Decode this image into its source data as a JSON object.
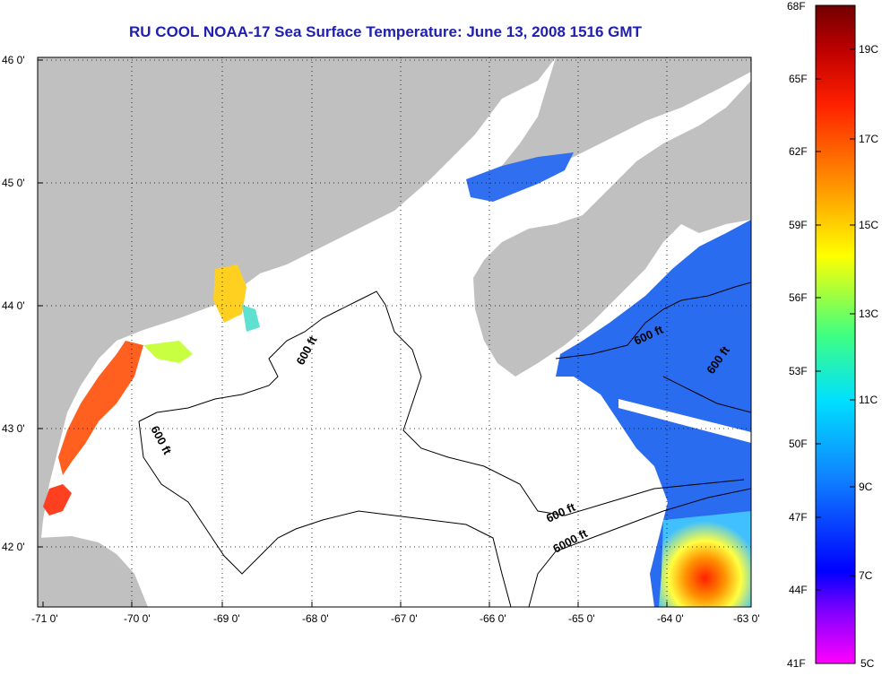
{
  "title": "RU COOL  NOAA-17  Sea Surface Temperature:  June 13, 2008 1516 GMT",
  "map": {
    "longitude_labels": [
      "-71 0'",
      "-70 0'",
      "-69 0'",
      "-68 0'",
      "-67 0'",
      "-66 0'",
      "-65 0'",
      "-64 0'",
      "-63 0'"
    ],
    "latitude_labels": [
      "46 0'",
      "45 0'",
      "44 0'",
      "43 0'",
      "42 0'"
    ],
    "contour_labels": [
      "600 ft",
      "600 ft",
      "600 ft",
      "600 ft",
      "600 ft",
      "6000 ft"
    ],
    "land_color": "#c0c0c0",
    "grid": "dotted"
  },
  "colorbar": {
    "fahrenheit_labels": [
      "68F",
      "65F",
      "62F",
      "59F",
      "56F",
      "53F",
      "50F",
      "47F",
      "44F",
      "41F"
    ],
    "celsius_labels": [
      "19C",
      "17C",
      "15C",
      "13C",
      "11C",
      "9C",
      "7C",
      "5C"
    ],
    "colors": [
      "#8b0000",
      "#ff0000",
      "#ff8000",
      "#ffff00",
      "#00ffff",
      "#0000ff",
      "#8000ff",
      "#ff00ff"
    ]
  }
}
